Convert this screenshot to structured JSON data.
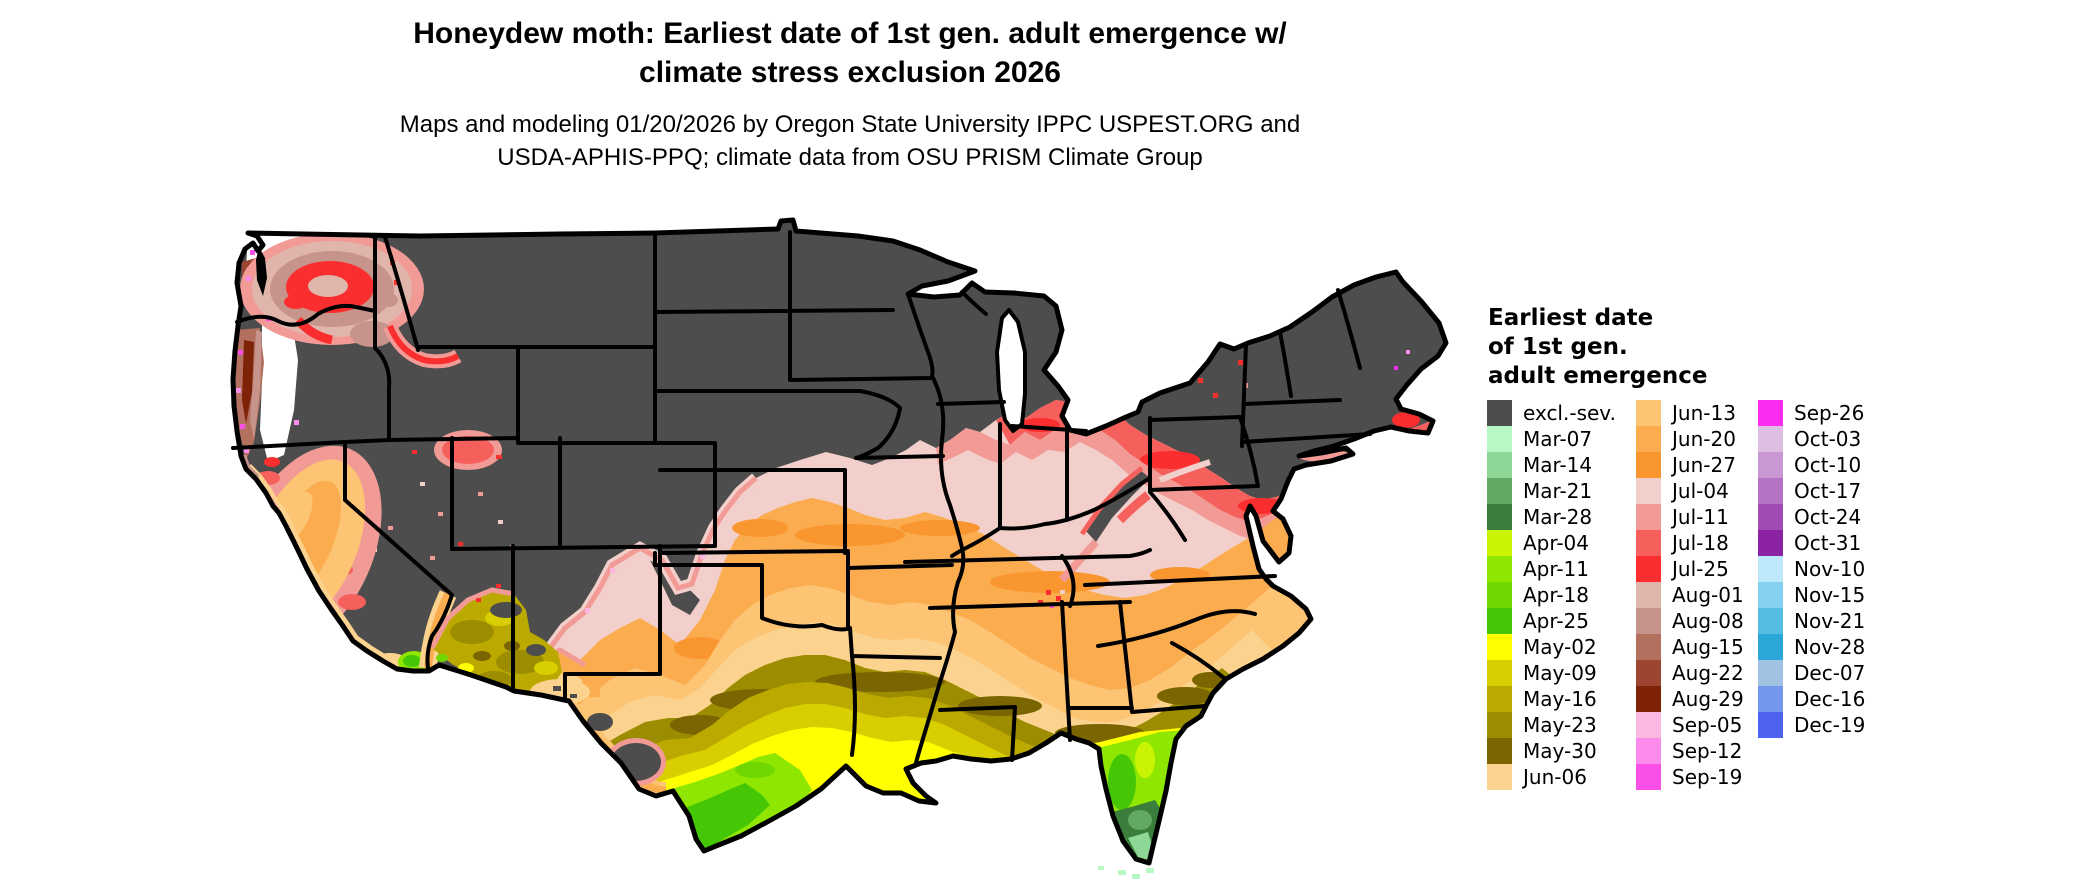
{
  "header": {
    "title_line1": "Honeydew moth: Earliest date of 1st gen. adult emergence w/",
    "title_line2": "climate stress exclusion 2026",
    "subtitle_line1": "Maps and modeling 01/20/2026 by Oregon State University IPPC USPEST.ORG and",
    "subtitle_line2": "USDA-APHIS-PPQ; climate data from OSU PRISM Climate Group"
  },
  "legend": {
    "title_lines": [
      "Earliest date",
      "of 1st gen.",
      "adult emergence"
    ],
    "columns": [
      {
        "items": [
          {
            "label": "excl.-sev.",
            "color": "#4D4D4D"
          },
          {
            "label": "Mar-07",
            "color": "#B7F8C4"
          },
          {
            "label": "Mar-14",
            "color": "#8FD797"
          },
          {
            "label": "Mar-21",
            "color": "#63A963"
          },
          {
            "label": "Mar-28",
            "color": "#3B7E3B"
          },
          {
            "label": "Apr-04",
            "color": "#C9F505"
          },
          {
            "label": "Apr-11",
            "color": "#8FE600"
          },
          {
            "label": "Apr-18",
            "color": "#70D800"
          },
          {
            "label": "Apr-25",
            "color": "#45C706"
          },
          {
            "label": "May-02",
            "color": "#FFFF00"
          },
          {
            "label": "May-09",
            "color": "#D8CE00"
          },
          {
            "label": "May-16",
            "color": "#BCA900"
          },
          {
            "label": "May-23",
            "color": "#9C8D00"
          },
          {
            "label": "May-30",
            "color": "#7A6500"
          },
          {
            "label": "Jun-06",
            "color": "#FBD38E"
          }
        ]
      },
      {
        "items": [
          {
            "label": "Jun-13",
            "color": "#FDC473"
          },
          {
            "label": "Jun-20",
            "color": "#FBAC4E"
          },
          {
            "label": "Jun-27",
            "color": "#FA9630"
          },
          {
            "label": "Jul-04",
            "color": "#F2CFCA"
          },
          {
            "label": "Jul-11",
            "color": "#F29B96"
          },
          {
            "label": "Jul-18",
            "color": "#F5605C"
          },
          {
            "label": "Jul-25",
            "color": "#FA2E2E"
          },
          {
            "label": "Aug-01",
            "color": "#E0B6AC"
          },
          {
            "label": "Aug-08",
            "color": "#C6948A"
          },
          {
            "label": "Aug-15",
            "color": "#B4705F"
          },
          {
            "label": "Aug-22",
            "color": "#9C4631"
          },
          {
            "label": "Aug-29",
            "color": "#7E2208"
          },
          {
            "label": "Sep-05",
            "color": "#FBB8E0"
          },
          {
            "label": "Sep-12",
            "color": "#FC8BEB"
          },
          {
            "label": "Sep-19",
            "color": "#FB50E8"
          }
        ]
      },
      {
        "items": [
          {
            "label": "Sep-26",
            "color": "#FB2BF2"
          },
          {
            "label": "Oct-03",
            "color": "#DDBFE4"
          },
          {
            "label": "Oct-10",
            "color": "#C897D4"
          },
          {
            "label": "Oct-17",
            "color": "#B472C4"
          },
          {
            "label": "Oct-24",
            "color": "#A04CB4"
          },
          {
            "label": "Oct-31",
            "color": "#8C22A4"
          },
          {
            "label": "Nov-10",
            "color": "#BDE8FB"
          },
          {
            "label": "Nov-15",
            "color": "#85D2F0"
          },
          {
            "label": "Nov-21",
            "color": "#55BCE4"
          },
          {
            "label": "Nov-28",
            "color": "#2BA8D8"
          },
          {
            "label": "Dec-07",
            "color": "#A2C2E4"
          },
          {
            "label": "Dec-16",
            "color": "#7397EB"
          },
          {
            "label": "Dec-19",
            "color": "#4D63F0"
          }
        ]
      }
    ]
  },
  "map_palette": {
    "excluded": "#4D4D4D",
    "mar07": "#B7F8C4",
    "mar14": "#8FD797",
    "mar21": "#63A963",
    "mar28": "#3B7E3B",
    "apr04": "#C9F505",
    "apr11": "#8FE600",
    "apr18": "#70D800",
    "apr25": "#45C706",
    "may02": "#FFFF00",
    "may09": "#D8CE00",
    "may16": "#BCA900",
    "may23": "#9C8D00",
    "may30": "#7A6500",
    "jun06": "#FBD38E",
    "jun13": "#FDC473",
    "jun20": "#FBAC4E",
    "jun27": "#FA9630",
    "jul04": "#F2CFCA",
    "jul11": "#F29B96",
    "jul18": "#F5605C",
    "jul25": "#FA2E2E",
    "aug01": "#E0B6AC",
    "aug08": "#C6948A",
    "aug15": "#B4705F",
    "aug22": "#9C4631",
    "aug29": "#7E2208",
    "sep05": "#FBB8E0",
    "sep12": "#FC8BEB",
    "sep19": "#FB50E8",
    "sep26": "#FB2BF2",
    "oct24": "#A04CB4"
  }
}
